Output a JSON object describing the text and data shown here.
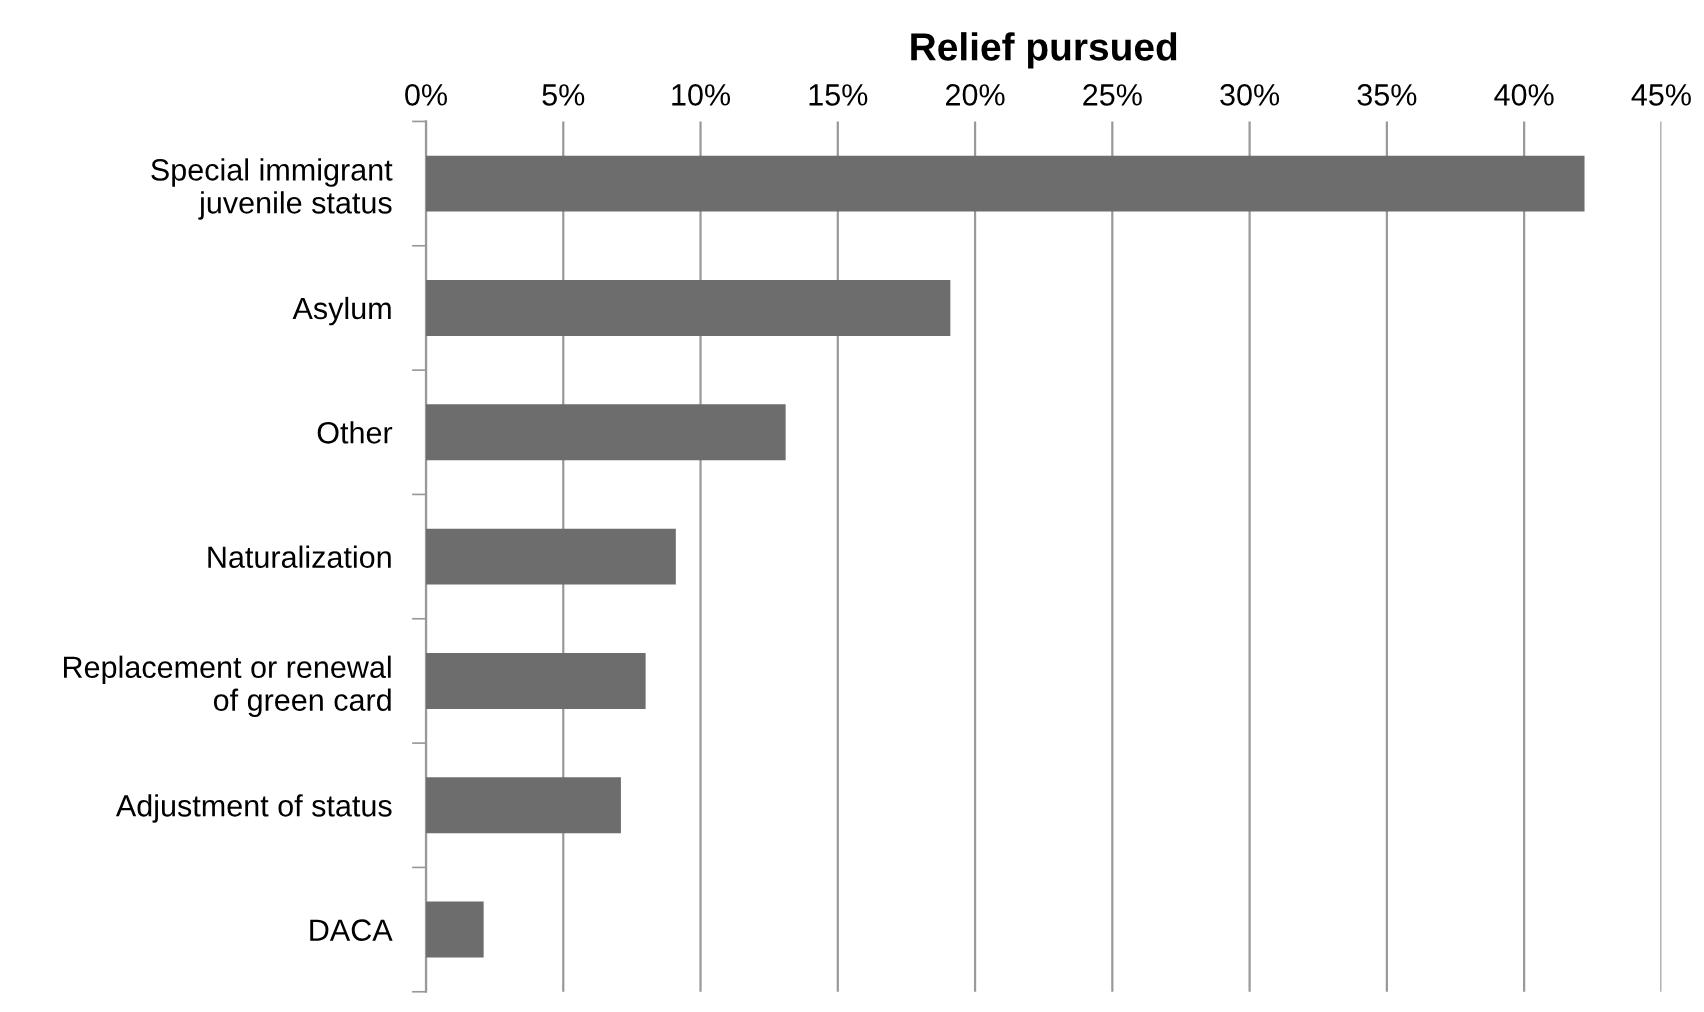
{
  "chart_data": {
    "type": "bar",
    "orientation": "horizontal",
    "title": "Relief pursued",
    "categories": [
      "Special immigrant\njuvenile status",
      "Asylum",
      "Other",
      "Naturalization",
      "Replacement or renewal\nof green card",
      "Adjustment of status",
      "DACA"
    ],
    "values": [
      42.2,
      19.1,
      13.1,
      9.1,
      8.0,
      7.1,
      2.1
    ],
    "color": "#6d6d6d",
    "xlim": [
      0,
      45
    ],
    "xticks": [
      {
        "value": 0,
        "label": "0%"
      },
      {
        "value": 5,
        "label": "5%"
      },
      {
        "value": 10,
        "label": "10%"
      },
      {
        "value": 15,
        "label": "15%"
      },
      {
        "value": 20,
        "label": "20%"
      },
      {
        "value": 25,
        "label": "25%"
      },
      {
        "value": 30,
        "label": "30%"
      },
      {
        "value": 35,
        "label": "35%"
      },
      {
        "value": 40,
        "label": "40%"
      },
      {
        "value": 45,
        "label": "45%"
      }
    ],
    "grid": "x",
    "legend": false
  }
}
